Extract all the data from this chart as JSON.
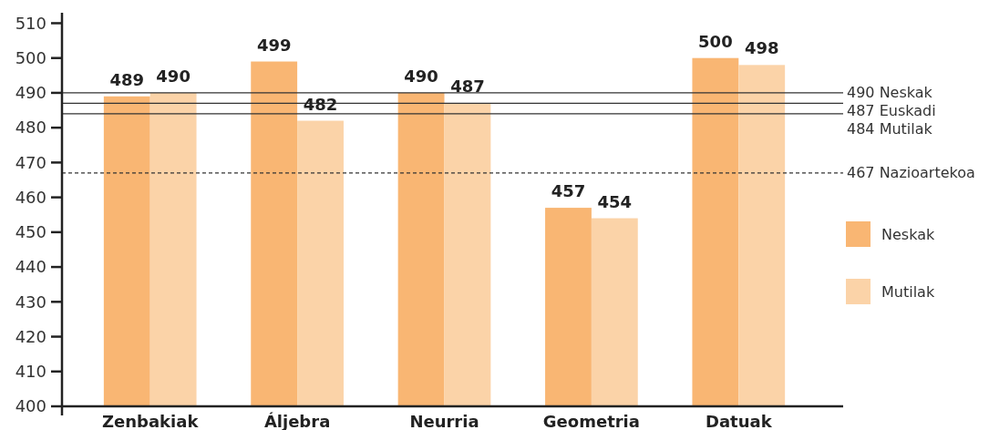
{
  "chart_data": {
    "type": "bar",
    "categories": [
      "Zenbakiak",
      "Áljebra",
      "Neurria",
      "Geometria",
      "Datuak"
    ],
    "series": [
      {
        "name": "Neskak",
        "color": "#f9b673",
        "values": [
          489,
          499,
          490,
          457,
          500
        ]
      },
      {
        "name": "Mutilak",
        "color": "#fbd3a8",
        "values": [
          490,
          482,
          487,
          454,
          498
        ]
      }
    ],
    "ylim": [
      400,
      513
    ],
    "yticks": [
      400,
      410,
      420,
      430,
      440,
      450,
      460,
      470,
      480,
      490,
      500,
      510
    ],
    "data_labels": true,
    "legend": "right",
    "grid": false,
    "ref_lines": [
      {
        "axis": "y",
        "value": 490,
        "label": "490 Neskak",
        "color": "#333333",
        "line_style": "solid"
      },
      {
        "axis": "y",
        "value": 487,
        "label": "487 Euskadi",
        "color": "#333333",
        "line_style": "solid"
      },
      {
        "axis": "y",
        "value": 484,
        "label": "484 Mutilak",
        "color": "#333333",
        "line_style": "solid"
      },
      {
        "axis": "y",
        "value": 467,
        "label": "467 Nazioartekoa",
        "color": "#333333",
        "line_style": "dashed"
      }
    ]
  }
}
